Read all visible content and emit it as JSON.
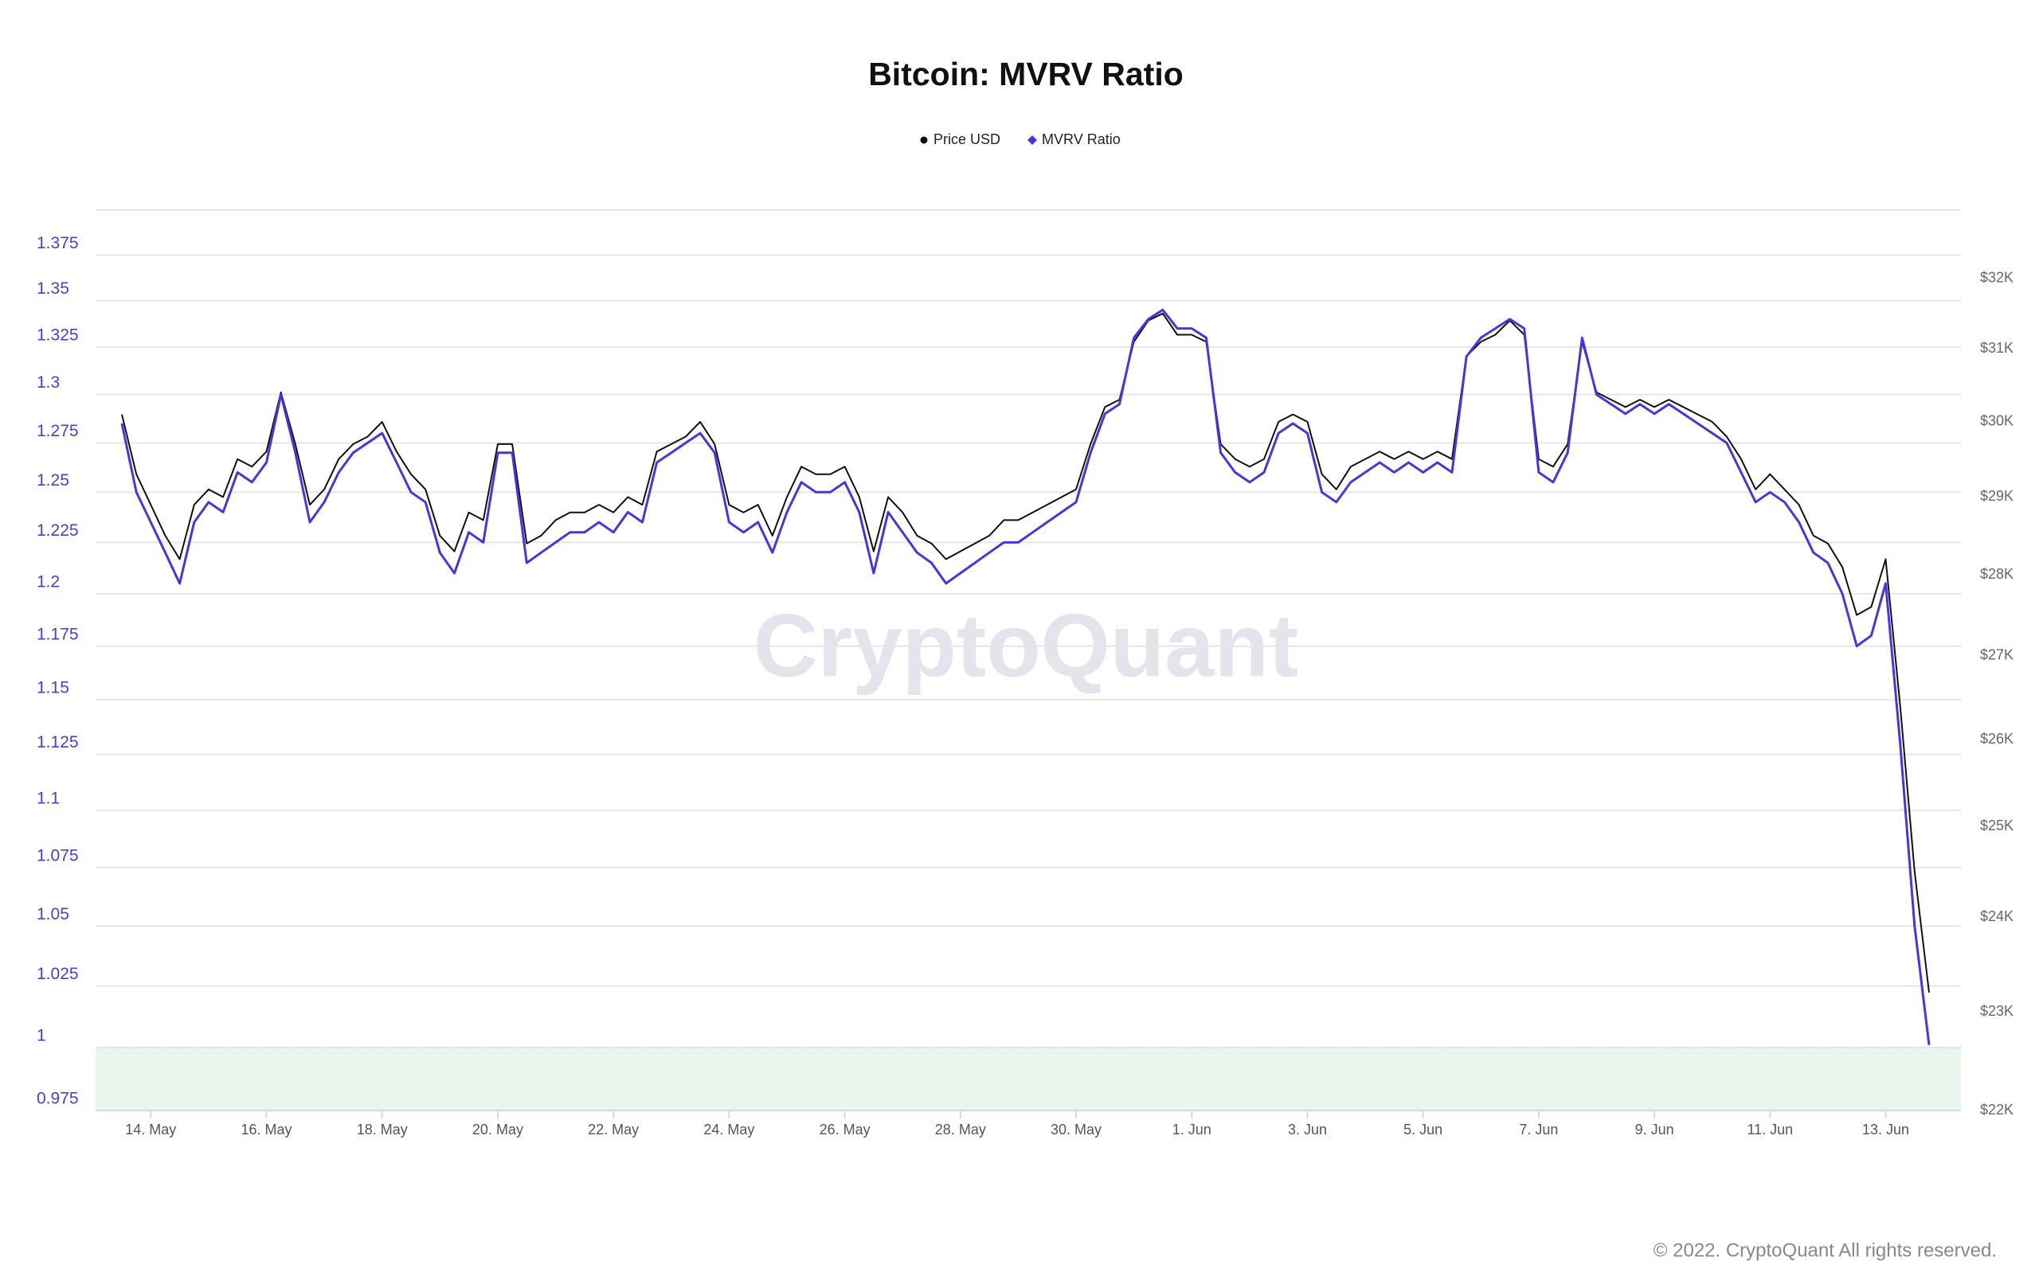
{
  "chart_data": {
    "type": "line",
    "title": "Bitcoin: MVRV Ratio",
    "watermark": "CryptoQuant",
    "credit": "© 2022. CryptoQuant All rights reserved.",
    "log_scale": true,
    "grid": true,
    "legend": "top",
    "categories": [
      null,
      null,
      "14. May",
      null,
      null,
      null,
      null,
      null,
      null,
      null,
      "16. May",
      null,
      null,
      null,
      null,
      null,
      null,
      null,
      "18. May",
      null,
      null,
      null,
      null,
      null,
      null,
      null,
      "20. May",
      null,
      null,
      null,
      null,
      null,
      null,
      null,
      "22. May",
      null,
      null,
      null,
      null,
      null,
      null,
      null,
      "24. May",
      null,
      null,
      null,
      null,
      null,
      null,
      null,
      "26. May",
      null,
      null,
      null,
      null,
      null,
      null,
      null,
      "28. May",
      null,
      null,
      null,
      null,
      null,
      null,
      null,
      "30. May",
      null,
      null,
      null,
      null,
      null,
      null,
      null,
      "1. Jun",
      null,
      null,
      null,
      null,
      null,
      null,
      null,
      "3. Jun",
      null,
      null,
      null,
      null,
      null,
      null,
      null,
      "5. Jun",
      null,
      null,
      null,
      null,
      null,
      null,
      null,
      "7. Jun",
      null,
      null,
      null,
      null,
      null,
      null,
      null,
      "9. Jun",
      null,
      null,
      null,
      null,
      null,
      null,
      null,
      "11. Jun",
      null,
      null,
      null,
      null,
      null,
      null,
      null,
      "13. Jun",
      null,
      null,
      null
    ],
    "series": [
      {
        "name": "Price USD",
        "color": "#111111",
        "marker": "circle",
        "axis": "y2",
        "values": [
          30100,
          29300,
          28900,
          28500,
          28200,
          28900,
          29100,
          29000,
          29500,
          29400,
          29600,
          30400,
          29700,
          28900,
          29100,
          29500,
          29700,
          29800,
          30000,
          29600,
          29300,
          29100,
          28500,
          28300,
          28800,
          28700,
          29700,
          29700,
          28400,
          28500,
          28700,
          28800,
          28800,
          28900,
          28800,
          29000,
          28900,
          29600,
          29700,
          29800,
          30000,
          29700,
          28900,
          28800,
          28900,
          28500,
          29000,
          29400,
          29300,
          29300,
          29400,
          29000,
          28300,
          29000,
          28800,
          28500,
          28400,
          28200,
          28300,
          28400,
          28500,
          28700,
          28700,
          28800,
          28900,
          29000,
          29100,
          29700,
          30200,
          30300,
          31100,
          31400,
          31500,
          31200,
          31200,
          31100,
          29700,
          29500,
          29400,
          29500,
          30000,
          30100,
          30000,
          29300,
          29100,
          29400,
          29500,
          29600,
          29500,
          29600,
          29500,
          29600,
          29500,
          30900,
          31100,
          31200,
          31400,
          31200,
          29500,
          29400,
          29700,
          31100,
          30400,
          30300,
          30200,
          30300,
          30200,
          30300,
          30200,
          30100,
          30000,
          29800,
          29500,
          29100,
          29300,
          29100,
          28900,
          28500,
          28400,
          28100,
          27500,
          27600,
          28200,
          26400,
          24500,
          23200
        ]
      },
      {
        "name": "MVRV Ratio",
        "color": "#4a35d8",
        "marker": "diamond",
        "values": [
          1.285,
          1.25,
          1.235,
          1.22,
          1.205,
          1.235,
          1.245,
          1.24,
          1.26,
          1.255,
          1.265,
          1.3,
          1.27,
          1.235,
          1.245,
          1.26,
          1.27,
          1.275,
          1.28,
          1.265,
          1.25,
          1.245,
          1.22,
          1.21,
          1.23,
          1.225,
          1.27,
          1.27,
          1.215,
          1.22,
          1.225,
          1.23,
          1.23,
          1.235,
          1.23,
          1.24,
          1.235,
          1.265,
          1.27,
          1.275,
          1.28,
          1.27,
          1.235,
          1.23,
          1.235,
          1.22,
          1.24,
          1.255,
          1.25,
          1.25,
          1.255,
          1.24,
          1.21,
          1.24,
          1.23,
          1.22,
          1.215,
          1.205,
          1.21,
          1.215,
          1.22,
          1.225,
          1.225,
          1.23,
          1.235,
          1.24,
          1.245,
          1.27,
          1.29,
          1.295,
          1.33,
          1.34,
          1.345,
          1.335,
          1.335,
          1.33,
          1.27,
          1.26,
          1.255,
          1.26,
          1.28,
          1.285,
          1.28,
          1.25,
          1.245,
          1.255,
          1.26,
          1.265,
          1.26,
          1.265,
          1.26,
          1.265,
          1.26,
          1.32,
          1.33,
          1.335,
          1.34,
          1.335,
          1.26,
          1.255,
          1.27,
          1.33,
          1.3,
          1.295,
          1.29,
          1.295,
          1.29,
          1.295,
          1.29,
          1.285,
          1.28,
          1.275,
          1.26,
          1.245,
          1.25,
          1.245,
          1.235,
          1.22,
          1.215,
          1.2,
          1.175,
          1.18,
          1.205,
          1.13,
          1.05,
          1.001
        ]
      }
    ],
    "ylim": [
      0.975,
      1.4
    ],
    "yticks": [
      0.975,
      1,
      1.025,
      1.05,
      1.075,
      1.1,
      1.125,
      1.15,
      1.175,
      1.2,
      1.225,
      1.25,
      1.275,
      1.3,
      1.325,
      1.35,
      1.375
    ],
    "y2lim": [
      22000,
      33000
    ],
    "y2ticks": [
      {
        "value": 22000,
        "label": "$22K"
      },
      {
        "value": 23000,
        "label": "$23K"
      },
      {
        "value": 24000,
        "label": "$24K"
      },
      {
        "value": 25000,
        "label": "$25K"
      },
      {
        "value": 26000,
        "label": "$26K"
      },
      {
        "value": 27000,
        "label": "$27K"
      },
      {
        "value": 28000,
        "label": "$28K"
      },
      {
        "value": 29000,
        "label": "$29K"
      },
      {
        "value": 30000,
        "label": "$30K"
      },
      {
        "value": 31000,
        "label": "$31K"
      },
      {
        "value": 32000,
        "label": "$32K"
      }
    ],
    "plot_band": {
      "from": 0.975,
      "to": 1,
      "color": "#e9f6ee",
      "border_color": "#7cc48a"
    }
  }
}
